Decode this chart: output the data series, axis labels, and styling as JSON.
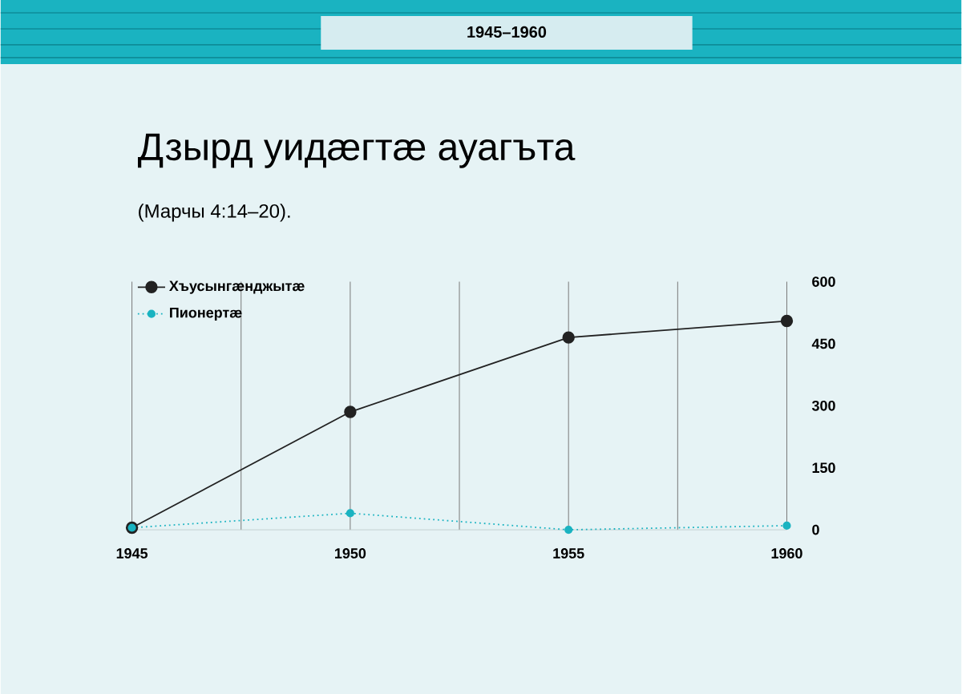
{
  "chart_data": {
    "type": "line",
    "title": "Дзырд уидæгтæ ауагъта",
    "subtitle": "(Марчы 4:14–20).",
    "annotations": [
      "1945–1960"
    ],
    "x": [
      1945,
      1950,
      1955,
      1960
    ],
    "series": [
      {
        "name": "Хъусынгæнджытæ",
        "color": "#222222",
        "line_style": "solid",
        "values": [
          5,
          285,
          465,
          505
        ]
      },
      {
        "name": "Пионертæ",
        "color": "#1ab3c1",
        "line_style": "dotted",
        "values": [
          5,
          40,
          0,
          10
        ]
      }
    ],
    "xlim": [
      1945,
      1960
    ],
    "xticks": [
      1945,
      {
        "value": 1947.5,
        "label": null
      },
      1950,
      {
        "value": 1952.5,
        "label": null
      },
      1955,
      {
        "value": 1957.5,
        "label": null
      },
      1960
    ],
    "ylim": [
      0,
      600
    ],
    "yticks": [
      0,
      150,
      300,
      450,
      600
    ],
    "grid": "x",
    "marker": "circle",
    "legend": "top left"
  }
}
